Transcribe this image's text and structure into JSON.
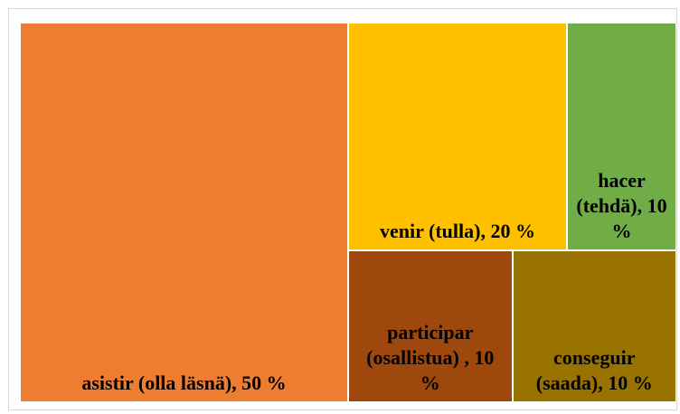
{
  "chart_data": {
    "type": "treemap",
    "values": [
      50,
      20,
      10,
      10,
      10
    ],
    "value_labels": [
      "asistir (olla läsnä), 50 %",
      "venir (tulla), 20 %",
      "hacer (tehdä), 10 %",
      "participar (osallistua) , 10 %",
      "conseguir (saada), 10 %"
    ],
    "colors": [
      "#ed7d31",
      "#ffc000",
      "#70ad47",
      "#9e480e",
      "#997300"
    ]
  }
}
